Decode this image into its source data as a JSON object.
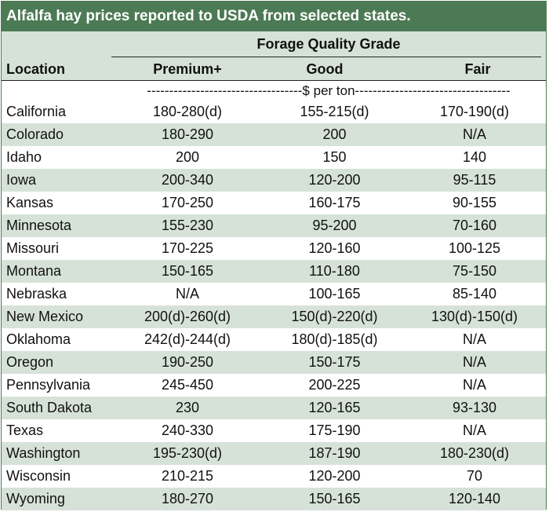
{
  "title": "Alfalfa hay prices reported to USDA from selected states.",
  "header": {
    "grade_label": "Forage Quality Grade",
    "location": "Location",
    "premium": "Premium+",
    "good": "Good",
    "fair": "Fair"
  },
  "units": "-----------------------------------$ per ton-----------------------------------",
  "rows": [
    {
      "location": "California",
      "premium": "180-280(d)",
      "good": "155-215(d)",
      "fair": "170-190(d)"
    },
    {
      "location": "Colorado",
      "premium": "180-290",
      "good": "200",
      "fair": "N/A"
    },
    {
      "location": "Idaho",
      "premium": "200",
      "good": "150",
      "fair": "140"
    },
    {
      "location": "Iowa",
      "premium": "200-340",
      "good": "120-200",
      "fair": "95-115"
    },
    {
      "location": "Kansas",
      "premium": "170-250",
      "good": "160-175",
      "fair": "90-155"
    },
    {
      "location": "Minnesota",
      "premium": "155-230",
      "good": "95-200",
      "fair": "70-160"
    },
    {
      "location": "Missouri",
      "premium": "170-225",
      "good": "120-160",
      "fair": "100-125"
    },
    {
      "location": "Montana",
      "premium": "150-165",
      "good": "110-180",
      "fair": "75-150"
    },
    {
      "location": "Nebraska",
      "premium": "N/A",
      "good": "100-165",
      "fair": "85-140"
    },
    {
      "location": "New Mexico",
      "premium": "200(d)-260(d)",
      "good": "150(d)-220(d)",
      "fair": "130(d)-150(d)"
    },
    {
      "location": "Oklahoma",
      "premium": "242(d)-244(d)",
      "good": "180(d)-185(d)",
      "fair": "N/A"
    },
    {
      "location": "Oregon",
      "premium": "190-250",
      "good": "150-175",
      "fair": "N/A"
    },
    {
      "location": "Pennsylvania",
      "premium": "245-450",
      "good": "200-225",
      "fair": "N/A"
    },
    {
      "location": "South Dakota",
      "premium": "230",
      "good": "120-165",
      "fair": "93-130"
    },
    {
      "location": "Texas",
      "premium": "240-330",
      "good": "175-190",
      "fair": "N/A"
    },
    {
      "location": "Washington",
      "premium": "195-230(d)",
      "good": "187-190",
      "fair": "180-230(d)"
    },
    {
      "location": "Wisconsin",
      "premium": "210-215",
      "good": "120-200",
      "fair": "70"
    },
    {
      "location": "Wyoming",
      "premium": "180-270",
      "good": "150-165",
      "fair": "120-140"
    }
  ]
}
